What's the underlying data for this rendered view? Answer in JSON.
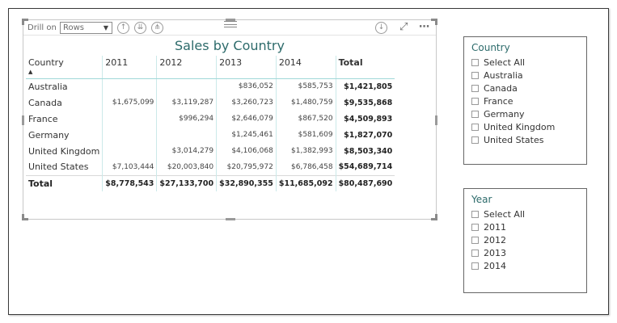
{
  "toolbar": {
    "drill_label": "Drill on",
    "drill_value": "Rows"
  },
  "visual": {
    "title": "Sales by Country",
    "icons": [
      "drill-up-icon",
      "expand-next-level-icon",
      "expand-all-icon",
      "download-icon",
      "focus-mode-icon",
      "more-options-icon"
    ]
  },
  "matrix": {
    "columns": [
      "Country",
      "2011",
      "2012",
      "2013",
      "2014",
      "Total"
    ],
    "rows": [
      {
        "country": "Australia",
        "y2011": "",
        "y2012": "",
        "y2013": "$836,052",
        "y2014": "$585,753",
        "total": "$1,421,805"
      },
      {
        "country": "Canada",
        "y2011": "$1,675,099",
        "y2012": "$3,119,287",
        "y2013": "$3,260,723",
        "y2014": "$1,480,759",
        "total": "$9,535,868"
      },
      {
        "country": "France",
        "y2011": "",
        "y2012": "$996,294",
        "y2013": "$2,646,079",
        "y2014": "$867,520",
        "total": "$4,509,893"
      },
      {
        "country": "Germany",
        "y2011": "",
        "y2012": "",
        "y2013": "$1,245,461",
        "y2014": "$581,609",
        "total": "$1,827,070"
      },
      {
        "country": "United Kingdom",
        "y2011": "",
        "y2012": "$3,014,279",
        "y2013": "$4,106,068",
        "y2014": "$1,382,993",
        "total": "$8,503,340"
      },
      {
        "country": "United States",
        "y2011": "$7,103,444",
        "y2012": "$20,003,840",
        "y2013": "$20,795,972",
        "y2014": "$6,786,458",
        "total": "$54,689,714"
      }
    ],
    "grand_total": {
      "country": "Total",
      "y2011": "$8,778,543",
      "y2012": "$27,133,700",
      "y2013": "$32,890,355",
      "y2014": "$11,685,092",
      "total": "$80,487,690"
    }
  },
  "slicer_country": {
    "title": "Country",
    "items": [
      "Select All",
      "Australia",
      "Canada",
      "France",
      "Germany",
      "United Kingdom",
      "United States"
    ]
  },
  "slicer_year": {
    "title": "Year",
    "items": [
      "Select All",
      "2011",
      "2012",
      "2013",
      "2014"
    ]
  },
  "colors": {
    "title_teal": "#2d6b6b",
    "grid_line": "#9fd8d8"
  }
}
